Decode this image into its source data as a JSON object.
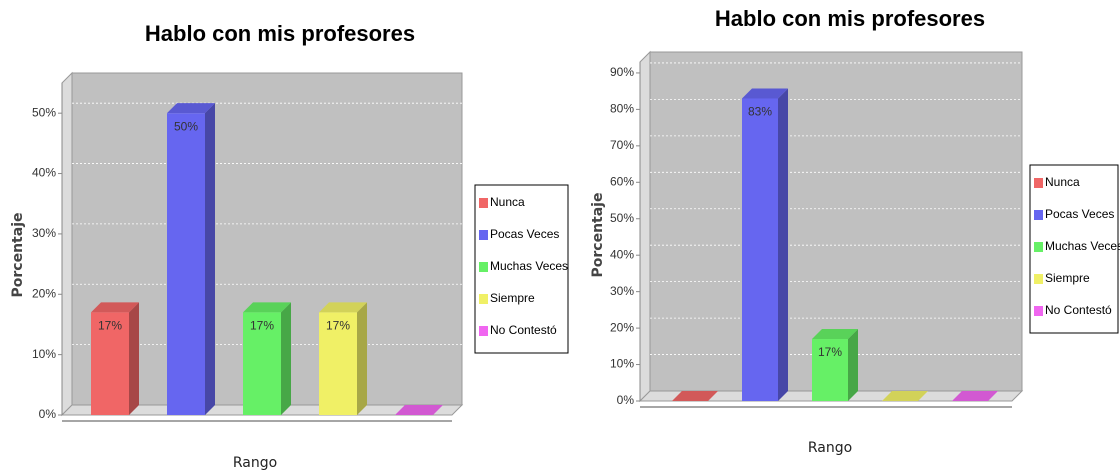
{
  "chart_data": [
    {
      "type": "bar3d",
      "title": "Hablo con mis profesores",
      "ylabel": "Porcentaje",
      "xlabel": "Rango",
      "categories": [
        null
      ],
      "ylim": [
        0,
        55
      ],
      "yticks": [
        {
          "value": 0,
          "label": "0%"
        },
        {
          "value": 10,
          "label": "10%"
        },
        {
          "value": 20,
          "label": "20%"
        },
        {
          "value": 30,
          "label": "30%"
        },
        {
          "value": 40,
          "label": "40%"
        },
        {
          "value": 50,
          "label": "50%"
        }
      ],
      "grid": true,
      "legend": "right",
      "series": [
        {
          "name": "Nunca",
          "color": "#f06666",
          "values": [
            17
          ],
          "value_labels": [
            "17%"
          ]
        },
        {
          "name": "Pocas Veces",
          "color": "#6666f0",
          "values": [
            50
          ],
          "value_labels": [
            "50%"
          ]
        },
        {
          "name": "Muchas Veces",
          "color": "#66f066",
          "values": [
            17
          ],
          "value_labels": [
            "17%"
          ]
        },
        {
          "name": "Siempre",
          "color": "#f0f066",
          "values": [
            17
          ],
          "value_labels": [
            "17%"
          ]
        },
        {
          "name": "No Contestó",
          "color": "#f066f0",
          "values": [
            0
          ]
        }
      ]
    },
    {
      "type": "bar3d",
      "title": "Hablo con mis profesores",
      "ylabel": "Porcentaje",
      "xlabel": "Rango",
      "categories": [
        null
      ],
      "ylim": [
        0,
        93
      ],
      "yticks": [
        {
          "value": 0,
          "label": "0%"
        },
        {
          "value": 10,
          "label": "10%"
        },
        {
          "value": 20,
          "label": "20%"
        },
        {
          "value": 30,
          "label": "30%"
        },
        {
          "value": 40,
          "label": "40%"
        },
        {
          "value": 50,
          "label": "50%"
        },
        {
          "value": 60,
          "label": "60%"
        },
        {
          "value": 70,
          "label": "70%"
        },
        {
          "value": 80,
          "label": "80%"
        },
        {
          "value": 90,
          "label": "90%"
        }
      ],
      "grid": true,
      "legend": "right",
      "series": [
        {
          "name": "Nunca",
          "color": "#f06666",
          "values": [
            0
          ]
        },
        {
          "name": "Pocas Veces",
          "color": "#6666f0",
          "values": [
            83
          ],
          "value_labels": [
            "83%"
          ]
        },
        {
          "name": "Muchas Veces",
          "color": "#66f066",
          "values": [
            17
          ],
          "value_labels": [
            "17%"
          ]
        },
        {
          "name": "Siempre",
          "color": "#f0f066",
          "values": [
            0
          ]
        },
        {
          "name": "No Contestó",
          "color": "#f066f0",
          "values": [
            0
          ]
        }
      ]
    }
  ]
}
